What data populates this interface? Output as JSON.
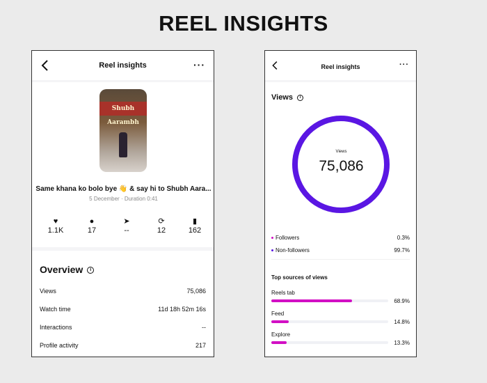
{
  "page_title": "REEL INSIGHTS",
  "left": {
    "header": "Reel insights",
    "caption": "Same khana ko bolo bye 👋 & say hi to Shubh Aara...",
    "meta": "5 December · Duration 0:41",
    "thumbnail_sign": "Shubh Aarambh",
    "stats": [
      {
        "icon": "heart-icon",
        "glyph": "♥",
        "value": "1.1K"
      },
      {
        "icon": "comment-icon",
        "glyph": "●",
        "value": "17"
      },
      {
        "icon": "share-icon",
        "glyph": "➤",
        "value": "--"
      },
      {
        "icon": "repost-icon",
        "glyph": "⟳",
        "value": "12"
      },
      {
        "icon": "bookmark-icon",
        "glyph": "▮",
        "value": "162"
      }
    ],
    "overview_title": "Overview",
    "overview": [
      {
        "label": "Views",
        "value": "75,086"
      },
      {
        "label": "Watch time",
        "value": "11d 18h 52m 16s"
      },
      {
        "label": "Interactions",
        "value": "--"
      },
      {
        "label": "Profile activity",
        "value": "217"
      }
    ]
  },
  "right": {
    "header": "Reel insights",
    "views_title": "Views",
    "ring_label": "Views",
    "ring_value": "75,086",
    "ring_color": "#5a16e3",
    "audience": [
      {
        "label": "Followers",
        "value": "0.3%",
        "color": "#d20fc4"
      },
      {
        "label": "Non-followers",
        "value": "99.7%",
        "color": "#5a16e3"
      }
    ],
    "sources_title": "Top sources of views",
    "sources": [
      {
        "label": "Reels tab",
        "value": "68.9%",
        "percent": 68.9
      },
      {
        "label": "Feed",
        "value": "14.8%",
        "percent": 14.8
      },
      {
        "label": "Explore",
        "value": "13.3%",
        "percent": 13.3
      }
    ]
  }
}
